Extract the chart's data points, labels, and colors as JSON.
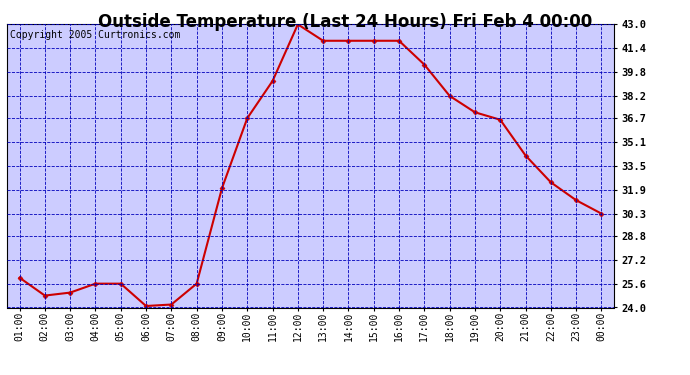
{
  "title": "Outside Temperature (Last 24 Hours) Fri Feb 4 00:00",
  "copyright": "Copyright 2005 Curtronics.com",
  "x_labels": [
    "01:00",
    "02:00",
    "03:00",
    "04:00",
    "05:00",
    "06:00",
    "07:00",
    "08:00",
    "09:00",
    "10:00",
    "11:00",
    "12:00",
    "13:00",
    "14:00",
    "15:00",
    "16:00",
    "17:00",
    "18:00",
    "19:00",
    "20:00",
    "21:00",
    "22:00",
    "23:00",
    "00:00"
  ],
  "y_values": [
    26.0,
    24.8,
    25.0,
    25.6,
    25.6,
    24.1,
    24.2,
    25.6,
    32.0,
    36.7,
    39.2,
    43.0,
    41.9,
    41.9,
    41.9,
    41.9,
    40.3,
    38.2,
    37.1,
    36.6,
    34.2,
    32.4,
    31.2,
    30.3
  ],
  "y_ticks": [
    24.0,
    25.6,
    27.2,
    28.8,
    30.3,
    31.9,
    33.5,
    35.1,
    36.7,
    38.2,
    39.8,
    41.4,
    43.0
  ],
  "line_color": "#cc0000",
  "marker_color": "#cc0000",
  "background_color": "#ccccff",
  "grid_color": "#0000bb",
  "title_fontsize": 12,
  "copyright_fontsize": 7,
  "label_fontsize": 7.5,
  "tick_fontsize": 7,
  "ylim_min": 24.0,
  "ylim_max": 43.0
}
